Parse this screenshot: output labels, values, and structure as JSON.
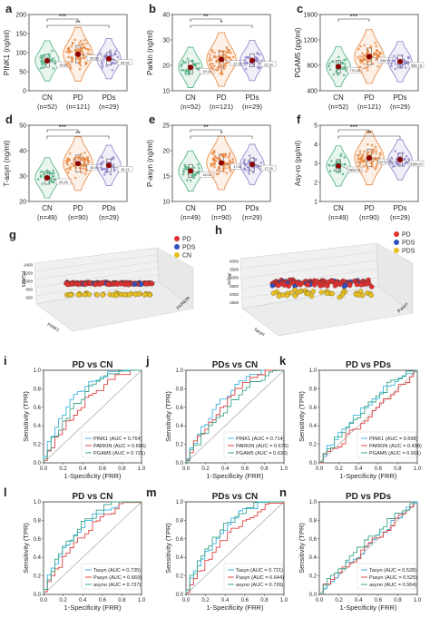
{
  "colors": {
    "cn": "#4caf7d",
    "pd": "#e8833a",
    "pds": "#8a7fc8",
    "mean": "#8b0000",
    "red": "#e03030",
    "blue": "#3050c0",
    "yellow": "#e8c020",
    "roc1": "#3cb4e0",
    "roc2": "#e04040",
    "roc3": "#3aa68a"
  },
  "chart_data": [
    {
      "panel": "a",
      "type": "violin",
      "ylabel": "PINK1 (ng/ml)",
      "ylim": [
        0,
        200
      ],
      "yticks": [
        0,
        50,
        100,
        150,
        200
      ],
      "groups": [
        "CN",
        "PD",
        "PDs"
      ],
      "ns": [
        "(n=52)",
        "(n=121)",
        "(n=29)"
      ],
      "means": [
        78.5,
        95.8,
        84.0
      ],
      "mean_labels": [
        "78.50",
        "95.80",
        "84.00"
      ],
      "sig": [
        {
          "from": 0,
          "to": 1,
          "label": "***"
        },
        {
          "from": 0,
          "to": 2,
          "label": "**"
        }
      ]
    },
    {
      "panel": "b",
      "type": "violin",
      "ylabel": "Parkin (ng/ml)",
      "ylim": [
        10,
        40
      ],
      "yticks": [
        10,
        20,
        30,
        40
      ],
      "groups": [
        "CN",
        "PD",
        "PDs"
      ],
      "ns": [
        "(n=52)",
        "(n=121)",
        "(n=29)"
      ],
      "means": [
        19.2,
        22.3,
        21.9
      ],
      "mean_labels": [
        "19.18",
        "22.30",
        "21.94"
      ],
      "sig": [
        {
          "from": 0,
          "to": 1,
          "label": "**"
        },
        {
          "from": 0,
          "to": 2,
          "label": "*"
        }
      ]
    },
    {
      "panel": "c",
      "type": "violin",
      "ylabel": "PGAM5 (pg/ml)",
      "ylim": [
        400,
        1600
      ],
      "yticks": [
        400,
        800,
        1200,
        1600
      ],
      "groups": [
        "CN",
        "PD",
        "PDs"
      ],
      "ns": [
        "(n=52)",
        "(n=121)",
        "(n=29)"
      ],
      "means": [
        779.5,
        938.0,
        858.2
      ],
      "mean_labels": [
        "779.46",
        "938.01",
        "858.18"
      ],
      "sig": [
        {
          "from": 0,
          "to": 1,
          "label": "***"
        }
      ]
    },
    {
      "panel": "d",
      "type": "violin",
      "ylabel": "T-asyn (ng/ml)",
      "ylim": [
        20,
        50
      ],
      "yticks": [
        20,
        30,
        40,
        50
      ],
      "groups": [
        "CN",
        "PD",
        "PDs"
      ],
      "ns": [
        "(n=49)",
        "(n=90)",
        "(n=29)"
      ],
      "means": [
        29.3,
        34.9,
        34.2
      ],
      "mean_labels": [
        "29.29",
        "34.94",
        "34.21"
      ],
      "sig": [
        {
          "from": 0,
          "to": 1,
          "label": "***"
        },
        {
          "from": 0,
          "to": 2,
          "label": "**"
        }
      ]
    },
    {
      "panel": "e",
      "type": "violin",
      "ylabel": "P-asyn (ng/ml)",
      "ylim": [
        10,
        25
      ],
      "yticks": [
        10,
        15,
        20,
        25
      ],
      "groups": [
        "CN",
        "PD",
        "PDs"
      ],
      "ns": [
        "(n=49)",
        "(n=90)",
        "(n=29)"
      ],
      "means": [
        16.0,
        17.6,
        17.3
      ],
      "mean_labels": [
        "16.04",
        "17.61",
        "17.29"
      ],
      "sig": [
        {
          "from": 0,
          "to": 1,
          "label": "**"
        },
        {
          "from": 0,
          "to": 2,
          "label": "*"
        }
      ]
    },
    {
      "panel": "f",
      "type": "violin",
      "ylabel": "Asy-ro (pg/ml)",
      "ylim": [
        1,
        5
      ],
      "yticks": [
        1,
        2,
        3,
        4,
        5
      ],
      "groups": [
        "CN",
        "PD",
        "PDs"
      ],
      "ns": [
        "(n=49)",
        "(n=90)",
        "(n=29)"
      ],
      "means": [
        2.86,
        3.28,
        3.19
      ],
      "mean_labels": [
        "2863.41",
        "3275.98",
        "3185.47"
      ],
      "sig": [
        {
          "from": 0,
          "to": 1,
          "label": "***"
        },
        {
          "from": 0,
          "to": 2,
          "label": "**"
        }
      ]
    },
    {
      "panel": "g",
      "type": "scatter3d",
      "legend": [
        "PD",
        "PDS",
        "CN"
      ],
      "legend_position": "top-right",
      "zlabel": "PGAM5",
      "xlabel": "PINK1",
      "ylabel": "PARKIN",
      "zticks": [
        "1400",
        "1200",
        "1000",
        "800",
        "600"
      ]
    },
    {
      "panel": "h",
      "type": "scatter3d",
      "legend": [
        "PD",
        "PDS",
        "PDS"
      ],
      "legend_position": "top-right",
      "zlabel": "Asyro",
      "xlabel": "Tasyn",
      "ylabel": "Pasyn",
      "zticks": [
        "4000",
        "3500",
        "3000",
        "2500",
        "2000",
        "1500"
      ]
    },
    {
      "panel": "i",
      "type": "line",
      "title": "PD vs CN",
      "xlabel": "1-Specificity (FRR)",
      "ylabel": "Sensitivity (TPR)",
      "xlim": [
        0,
        1
      ],
      "ylim": [
        0,
        1
      ],
      "legend_position": "bottom-right",
      "series": [
        {
          "name": "PINK1 (AUC = 0.764)"
        },
        {
          "name": "PARKIN (AUC = 0.665)"
        },
        {
          "name": "PGAM5 (AUC = 0.721)"
        }
      ]
    },
    {
      "panel": "j",
      "type": "line",
      "title": "PDs vs CN",
      "xlabel": "1-Specificity (FRR)",
      "ylabel": "Sensitivity (TPR)",
      "xlim": [
        0,
        1
      ],
      "ylim": [
        0,
        1
      ],
      "legend_position": "bottom-right",
      "series": [
        {
          "name": "PINK1 (AUC = 0.714)"
        },
        {
          "name": "PARKIN (AUC = 0.676)"
        },
        {
          "name": "PGAM5 (AUC = 0.636)"
        }
      ]
    },
    {
      "panel": "k",
      "type": "line",
      "title": "PD vs PDs",
      "xlabel": "1-Specificity (FRR)",
      "ylabel": "Sensitivity (TPR)",
      "xlim": [
        0,
        1
      ],
      "ylim": [
        0,
        1
      ],
      "legend_position": "bottom-right",
      "series": [
        {
          "name": "PINK1 (AUC = 0.598)"
        },
        {
          "name": "PARKIN (AUC = 0.499)"
        },
        {
          "name": "PGAM5 (AUC = 0.601)"
        }
      ]
    },
    {
      "panel": "l",
      "type": "line",
      "title": "PD vs CN",
      "xlabel": "1-Specificity (FRR)",
      "ylabel": "Sensitivity (TPR)",
      "xlim": [
        0,
        1
      ],
      "ylim": [
        0,
        1
      ],
      "legend_position": "bottom-right",
      "series": [
        {
          "name": "Tasyn (AUC = 0.735)"
        },
        {
          "name": "Pasyn (AUC = 0.669)"
        },
        {
          "name": "asyno (AUC = 0.737)"
        }
      ]
    },
    {
      "panel": "m",
      "type": "line",
      "title": "PDs vs CN",
      "xlabel": "1-Specificity (FRR)",
      "ylabel": "Sensitivity (TPR)",
      "xlim": [
        0,
        1
      ],
      "ylim": [
        0,
        1
      ],
      "legend_position": "bottom-right",
      "series": [
        {
          "name": "Tasyn (AUC = 0.721)"
        },
        {
          "name": "Pasyn (AUC = 0.644)"
        },
        {
          "name": "asyno (AUC = 0.726)"
        }
      ]
    },
    {
      "panel": "n",
      "type": "line",
      "title": "PD vs PDs",
      "xlabel": "1-Specificity (FRR)",
      "ylabel": "Sensitivity (TPR)",
      "xlim": [
        0,
        1
      ],
      "ylim": [
        0,
        1
      ],
      "legend_position": "bottom-right",
      "series": [
        {
          "name": "Tasyn (AUC = 0.528)"
        },
        {
          "name": "Pasyn (AUC = 0.525)"
        },
        {
          "name": "asyno (AUC = 0.564)"
        }
      ]
    }
  ],
  "roc_ticks": [
    "0.0",
    "0.2",
    "0.4",
    "0.6",
    "0.8",
    "1.0"
  ]
}
